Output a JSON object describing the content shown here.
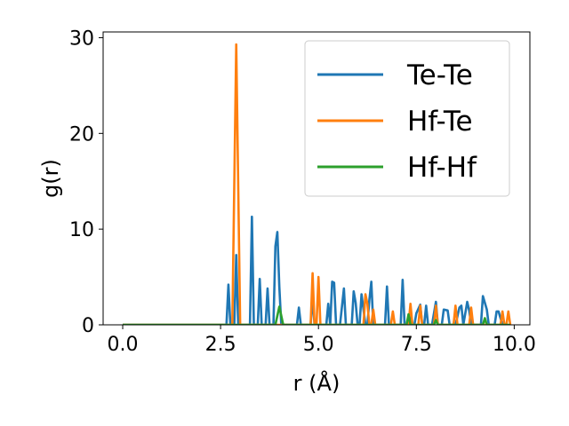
{
  "chart_data": {
    "type": "line",
    "title": "",
    "xlabel": "r (Å)",
    "ylabel": "g(r)",
    "xlim": [
      -0.5,
      10.4
    ],
    "ylim": [
      0,
      30.6
    ],
    "xticks": [
      0.0,
      2.5,
      5.0,
      7.5,
      10.0
    ],
    "xtick_labels": [
      "0.0",
      "2.5",
      "5.0",
      "7.5",
      "10.0"
    ],
    "yticks": [
      0,
      10,
      20,
      30
    ],
    "ytick_labels": [
      "0",
      "10",
      "20",
      "30"
    ],
    "grid": false,
    "legend_position": "top-right",
    "series": [
      {
        "name": "Te-Te",
        "color": "#1f77b4",
        "x": [
          0.0,
          2.65,
          2.7,
          2.75,
          2.8,
          2.85,
          2.9,
          2.95,
          3.0,
          3.25,
          3.3,
          3.35,
          3.45,
          3.5,
          3.55,
          3.65,
          3.7,
          3.75,
          3.85,
          3.9,
          3.95,
          4.0,
          4.05,
          4.1,
          4.15,
          4.45,
          4.5,
          4.55,
          4.8,
          4.85,
          4.9,
          4.95,
          5.0,
          5.2,
          5.25,
          5.3,
          5.35,
          5.4,
          5.45,
          5.5,
          5.55,
          5.65,
          5.7,
          5.75,
          5.85,
          5.9,
          5.95,
          6.0,
          6.05,
          6.1,
          6.2,
          6.25,
          6.3,
          6.35,
          6.4,
          6.5,
          6.55,
          6.6,
          6.7,
          6.75,
          6.8,
          6.85,
          6.9,
          6.95,
          7.0,
          7.1,
          7.15,
          7.2,
          7.3,
          7.35,
          7.4,
          7.45,
          7.5,
          7.6,
          7.65,
          7.7,
          7.75,
          7.8,
          7.85,
          7.9,
          8.0,
          8.05,
          8.1,
          8.15,
          8.2,
          8.3,
          8.35,
          8.4,
          8.45,
          8.5,
          8.6,
          8.65,
          8.7,
          8.8,
          8.85,
          8.9,
          9.0,
          9.1,
          9.15,
          9.2,
          9.3,
          9.35,
          9.4,
          9.5,
          9.55,
          9.6,
          9.7,
          9.75,
          9.8
        ],
        "values": [
          0,
          0,
          4.2,
          0,
          0,
          0,
          7.3,
          0,
          0,
          0,
          11.3,
          0,
          0,
          4.8,
          0,
          0,
          3.8,
          0,
          0,
          8.2,
          9.7,
          4.0,
          0,
          0,
          0,
          0,
          1.8,
          0,
          0,
          2.9,
          0,
          0,
          0,
          0,
          2.2,
          0,
          4.5,
          4.4,
          0,
          0,
          0,
          3.8,
          0,
          0,
          0,
          3.5,
          2.3,
          0,
          0,
          3.2,
          0,
          0,
          2.6,
          4.5,
          0,
          0,
          0,
          0,
          0,
          4.0,
          0,
          0,
          0,
          0,
          0,
          0,
          4.7,
          0,
          0,
          1.4,
          0,
          0,
          1.2,
          2.1,
          0,
          0,
          2.0,
          0,
          0,
          0,
          2.4,
          0,
          0,
          0,
          1.6,
          1.5,
          0,
          0,
          0,
          0,
          1.8,
          2.0,
          0,
          2.4,
          1.5,
          0,
          0,
          0,
          0,
          3.0,
          1.6,
          0,
          0,
          0,
          1.4,
          1.4,
          0,
          0,
          0
        ]
      },
      {
        "name": "Hf-Te",
        "color": "#ff7f0e",
        "x": [
          0.0,
          2.8,
          2.9,
          3.0,
          4.7,
          4.8,
          4.85,
          4.9,
          4.95,
          5.0,
          5.05,
          6.15,
          6.2,
          6.25,
          6.3,
          6.35,
          6.4,
          6.45,
          6.85,
          6.9,
          6.95,
          7.3,
          7.35,
          7.4,
          7.55,
          7.6,
          7.65,
          7.95,
          8.0,
          8.05,
          8.45,
          8.5,
          8.55,
          8.85,
          8.9,
          8.95,
          9.65,
          9.7,
          9.75,
          9.8,
          9.85,
          9.9
        ],
        "values": [
          0,
          0,
          29.3,
          0,
          0,
          0,
          5.4,
          0,
          0,
          5.0,
          0,
          0,
          3.2,
          2.2,
          0,
          0,
          1.6,
          0,
          0,
          1.4,
          0,
          0,
          2.2,
          0,
          0,
          2.0,
          0,
          0,
          2.0,
          0,
          0,
          2.0,
          0,
          0,
          1.8,
          0,
          0,
          1.4,
          0,
          0,
          1.4,
          0
        ]
      },
      {
        "name": "Hf-Hf",
        "color": "#2ca02c",
        "x": [
          0.0,
          3.9,
          4.0,
          4.1,
          7.25,
          7.3,
          7.35,
          7.95,
          8.0,
          8.05,
          9.2,
          9.25,
          9.3,
          9.9
        ],
        "values": [
          0,
          0,
          1.9,
          0,
          0,
          1.1,
          0,
          0,
          0.5,
          0,
          0,
          0.7,
          0,
          0
        ]
      }
    ]
  }
}
